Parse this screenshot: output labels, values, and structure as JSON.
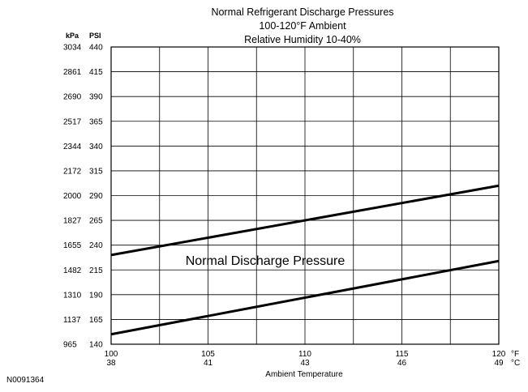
{
  "chart_data": {
    "type": "line",
    "title_lines": [
      "Normal  Refrigerant  Discharge  Pressures",
      "100-120°F Ambient",
      "Relative Humidity 10-40%"
    ],
    "xlabel": "Ambient Temperature",
    "x_unit_f": "°F",
    "x_unit_c": "°C",
    "y_unit_kpa": "kPa",
    "y_unit_psi": "PSI",
    "xlim": [
      100,
      120
    ],
    "ylim": [
      140,
      440
    ],
    "x_ticks_f": [
      "100",
      "105",
      "110",
      "115",
      "120"
    ],
    "x_ticks_c": [
      "38",
      "41",
      "43",
      "46",
      "49"
    ],
    "y_ticks_psi": [
      "440",
      "415",
      "390",
      "365",
      "340",
      "315",
      "290",
      "265",
      "240",
      "215",
      "190",
      "165",
      "140"
    ],
    "y_ticks_kpa": [
      "3034",
      "2861",
      "2690",
      "2517",
      "2344",
      "2172",
      "2000",
      "1827",
      "1655",
      "1482",
      "1310",
      "1137",
      "965"
    ],
    "grid": true,
    "band_label": "Normal Discharge Pressure",
    "series": [
      {
        "x": [
          100,
          120
        ],
        "y": [
          230,
          300
        ]
      },
      {
        "x": [
          100,
          120
        ],
        "y": [
          150,
          224
        ]
      }
    ],
    "figure_id": "N0091364"
  }
}
